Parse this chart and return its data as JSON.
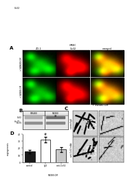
{
  "col_labels_A": [
    "ZO-1",
    "HMEC\nCx32",
    "merged"
  ],
  "row_label_A1": "+ SWA480-CM",
  "row_label_A2": "+ SW480-CM",
  "bar_categories": [
    "control",
    "IgG",
    "anti-Cx32"
  ],
  "bar_xlabel": "SW480-CM",
  "bar_ylabel": "angiogenesis",
  "bar_values": [
    15,
    32,
    18
  ],
  "bar_errors": [
    2.5,
    4.0,
    3.5
  ],
  "bar_colors": [
    "#1a1a1a",
    "#ffffff",
    "#c8c8c8"
  ],
  "bar_ylim": [
    0,
    40
  ],
  "bar_yticks": [
    0,
    10,
    20,
    30,
    40
  ],
  "wb_label_cx32": "Cx32",
  "wb_label_hsp70": "Hsc70",
  "wb_header1": "SW480",
  "wb_header2": "SW480\nCM",
  "background_color": "#ffffff",
  "panel_label_fontsize": 5,
  "C_title": "+ SW480-CM",
  "C_row1": "control IgG",
  "C_row2": "anti-Cx32 mAb"
}
